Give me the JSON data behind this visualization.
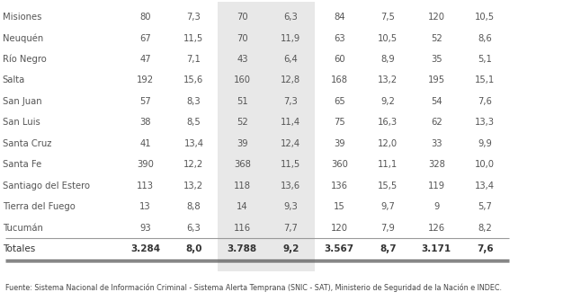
{
  "rows": [
    [
      "Misiones",
      "80",
      "7,3",
      "70",
      "6,3",
      "84",
      "7,5",
      "120",
      "10,5"
    ],
    [
      "Neuquén",
      "67",
      "11,5",
      "70",
      "11,9",
      "63",
      "10,5",
      "52",
      "8,6"
    ],
    [
      "Río Negro",
      "47",
      "7,1",
      "43",
      "6,4",
      "60",
      "8,9",
      "35",
      "5,1"
    ],
    [
      "Salta",
      "192",
      "15,6",
      "160",
      "12,8",
      "168",
      "13,2",
      "195",
      "15,1"
    ],
    [
      "San Juan",
      "57",
      "8,3",
      "51",
      "7,3",
      "65",
      "9,2",
      "54",
      "7,6"
    ],
    [
      "San Luis",
      "38",
      "8,5",
      "52",
      "11,4",
      "75",
      "16,3",
      "62",
      "13,3"
    ],
    [
      "Santa Cruz",
      "41",
      "13,4",
      "39",
      "12,4",
      "39",
      "12,0",
      "33",
      "9,9"
    ],
    [
      "Santa Fe",
      "390",
      "12,2",
      "368",
      "11,5",
      "360",
      "11,1",
      "328",
      "10,0"
    ],
    [
      "Santiago del Estero",
      "113",
      "13,2",
      "118",
      "13,6",
      "136",
      "15,5",
      "119",
      "13,4"
    ],
    [
      "Tierra del Fuego",
      "13",
      "8,8",
      "14",
      "9,3",
      "15",
      "9,7",
      "9",
      "5,7"
    ],
    [
      "Tucumán",
      "93",
      "6,3",
      "116",
      "7,7",
      "120",
      "7,9",
      "126",
      "8,2"
    ]
  ],
  "totals_row": [
    "Totales",
    "3.284",
    "8,0",
    "3.788",
    "9,2",
    "3.567",
    "8,7",
    "3.171",
    "7,6"
  ],
  "footer": "Fuente: Sistema Nacional de Información Criminal - Sistema Alerta Temprana (SNIC - SAT), Ministerio de Seguridad de la Nación e INDEC.",
  "shaded_cols": [
    2,
    3
  ],
  "bg_color": "#ffffff",
  "row_text_color": "#555555",
  "totals_text_color": "#333333",
  "footer_text_color": "#444444",
  "shade_color": "#e8e8e8",
  "separator_color": "#999999",
  "bottom_line_color": "#555555"
}
